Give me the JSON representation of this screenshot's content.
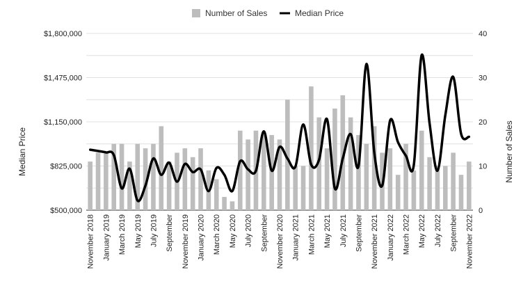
{
  "chart_data": {
    "type": "bar",
    "title": "",
    "xlabel": "",
    "ylabel_left": "Median Price",
    "ylabel_right": "Number of Sales",
    "y_left_range": [
      500000,
      1800000
    ],
    "y_right_range": [
      0,
      40
    ],
    "y_left_ticks": [
      "$1,800,000",
      "$1,475,000",
      "$1,150,000",
      "$825,000",
      "$500,000"
    ],
    "y_right_ticks": [
      "40",
      "30",
      "20",
      "10",
      "0"
    ],
    "grid": true,
    "legend_position": "top-center",
    "months": [
      "Nov 2018",
      "Dec 2018",
      "Jan 2019",
      "Feb 2019",
      "Mar 2019",
      "Apr 2019",
      "May 2019",
      "Jun 2019",
      "Jul 2019",
      "Aug 2019",
      "Sep 2019",
      "Oct 2019",
      "Nov 2019",
      "Dec 2019",
      "Jan 2020",
      "Feb 2020",
      "Mar 2020",
      "Apr 2020",
      "May 2020",
      "Jun 2020",
      "Jul 2020",
      "Aug 2020",
      "Sep 2020",
      "Oct 2020",
      "Nov 2020",
      "Dec 2020",
      "Jan 2021",
      "Feb 2021",
      "Mar 2021",
      "Apr 2021",
      "May 2021",
      "Jun 2021",
      "Jul 2021",
      "Aug 2021",
      "Sep 2021",
      "Oct 2021",
      "Nov 2021",
      "Dec 2021",
      "Jan 2022",
      "Feb 2022",
      "Mar 2022",
      "Apr 2022",
      "May 2022",
      "Jun 2022",
      "Jul 2022",
      "Aug 2022",
      "Sep 2022",
      "Oct 2022",
      "Nov 2022"
    ],
    "x_tick_labels": [
      {
        "index": 0,
        "label": "November 2018"
      },
      {
        "index": 2,
        "label": "January 2019"
      },
      {
        "index": 4,
        "label": "March 2019"
      },
      {
        "index": 6,
        "label": "May 2019"
      },
      {
        "index": 8,
        "label": "July 2019"
      },
      {
        "index": 10,
        "label": "September"
      },
      {
        "index": 12,
        "label": "November 2019"
      },
      {
        "index": 14,
        "label": "January 2020"
      },
      {
        "index": 16,
        "label": "March 2020"
      },
      {
        "index": 18,
        "label": "May 2020"
      },
      {
        "index": 20,
        "label": "July 2020"
      },
      {
        "index": 22,
        "label": "September"
      },
      {
        "index": 24,
        "label": "November 2020"
      },
      {
        "index": 26,
        "label": "January 2021"
      },
      {
        "index": 28,
        "label": "March 2021"
      },
      {
        "index": 30,
        "label": "May 2021"
      },
      {
        "index": 32,
        "label": "July 2021"
      },
      {
        "index": 34,
        "label": "September"
      },
      {
        "index": 36,
        "label": "November 2021"
      },
      {
        "index": 38,
        "label": "January 2022"
      },
      {
        "index": 40,
        "label": "March 2022"
      },
      {
        "index": 42,
        "label": "May 2022"
      },
      {
        "index": 44,
        "label": "July 2022"
      },
      {
        "index": 46,
        "label": "September"
      },
      {
        "index": 48,
        "label": "November 2022"
      }
    ],
    "series": [
      {
        "name": "Number of Sales",
        "type": "bar",
        "axis": "right",
        "color": "#bdbdbd",
        "values": [
          11,
          13,
          13,
          15,
          15,
          11,
          15,
          14,
          15,
          19,
          11,
          13,
          14,
          12,
          14,
          9,
          7,
          3,
          2,
          18,
          16,
          18,
          17,
          17,
          16,
          25,
          10,
          10,
          28,
          21,
          14,
          23,
          26,
          21,
          17,
          15,
          19,
          13,
          14,
          8,
          15,
          9,
          18,
          12,
          10,
          10,
          13,
          8,
          11
        ]
      },
      {
        "name": "Median Price",
        "type": "line",
        "axis": "left",
        "color": "#000000",
        "values": [
          945000,
          935000,
          925000,
          905000,
          660000,
          805000,
          570000,
          680000,
          880000,
          760000,
          850000,
          710000,
          840000,
          780000,
          800000,
          640000,
          810000,
          760000,
          640000,
          860000,
          800000,
          790000,
          1080000,
          790000,
          965000,
          880000,
          820000,
          1130000,
          835000,
          870000,
          1170000,
          660000,
          880000,
          1060000,
          825000,
          1575000,
          920000,
          680000,
          1160000,
          1000000,
          900000,
          830000,
          1640000,
          1140000,
          790000,
          1200000,
          1480000,
          1060000,
          1040000
        ]
      }
    ]
  }
}
